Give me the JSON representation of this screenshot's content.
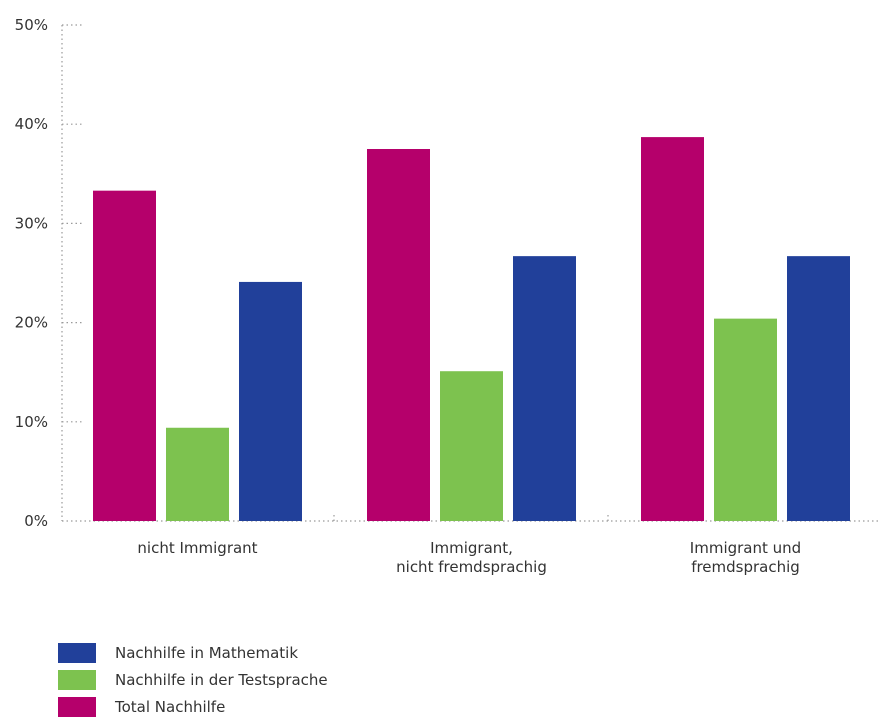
{
  "chart_data": {
    "type": "bar",
    "categories": [
      [
        "nicht Immigrant"
      ],
      [
        "Immigrant,",
        "nicht fremdsprachig"
      ],
      [
        "Immigrant und",
        "fremdsprachig"
      ]
    ],
    "series": [
      {
        "name": "Total Nachhilfe",
        "color": "#b5006b",
        "values": [
          33.3,
          37.5,
          38.7
        ]
      },
      {
        "name": "Nachhilfe in der Testsprache",
        "color": "#7dc24f",
        "values": [
          9.4,
          15.1,
          20.4
        ]
      },
      {
        "name": "Nachhilfe in Mathematik",
        "color": "#21409a",
        "values": [
          24.1,
          26.7,
          26.7
        ]
      }
    ],
    "ylim": [
      0,
      50
    ],
    "yticks": [
      {
        "value": 0,
        "label": "0%"
      },
      {
        "value": 10,
        "label": "10%"
      },
      {
        "value": 20,
        "label": "20%"
      },
      {
        "value": 30,
        "label": "30%"
      },
      {
        "value": 40,
        "label": "40%"
      },
      {
        "value": 50,
        "label": "50%"
      }
    ],
    "xlabel": "",
    "ylabel": "",
    "grid": false,
    "legend_position": "bottom-left",
    "legend_order": [
      "Nachhilfe in Mathematik",
      "Nachhilfe in der Testsprache",
      "Total Nachhilfe"
    ]
  }
}
